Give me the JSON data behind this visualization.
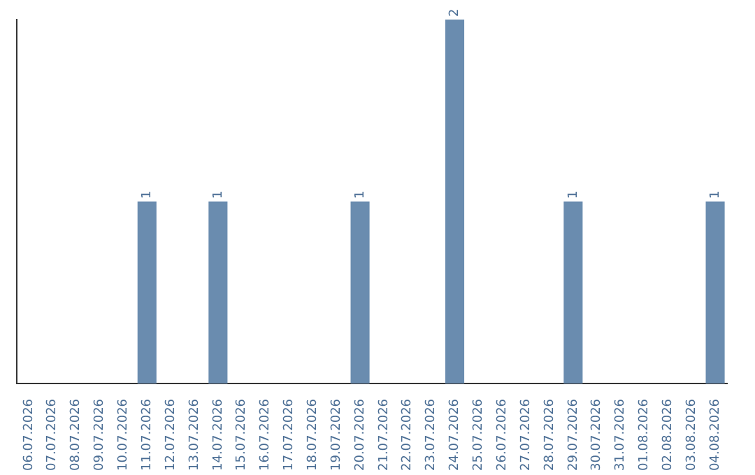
{
  "chart_data": {
    "type": "bar",
    "categories": [
      "06.07.2026",
      "07.07.2026",
      "08.07.2026",
      "09.07.2026",
      "10.07.2026",
      "11.07.2026",
      "12.07.2026",
      "13.07.2026",
      "14.07.2026",
      "15.07.2026",
      "16.07.2026",
      "17.07.2026",
      "18.07.2026",
      "19.07.2026",
      "20.07.2026",
      "21.07.2026",
      "22.07.2026",
      "23.07.2026",
      "24.07.2026",
      "25.07.2026",
      "26.07.2026",
      "27.07.2026",
      "28.07.2026",
      "29.07.2026",
      "30.07.2026",
      "31.07.2026",
      "01.08.2026",
      "02.08.2026",
      "03.08.2026",
      "04.08.2026"
    ],
    "values": [
      0,
      0,
      0,
      0,
      0,
      1,
      0,
      0,
      1,
      0,
      0,
      0,
      0,
      0,
      1,
      0,
      0,
      0,
      2,
      0,
      0,
      0,
      0,
      1,
      0,
      0,
      0,
      0,
      0,
      1
    ],
    "value_labels": [
      null,
      null,
      null,
      null,
      null,
      "1",
      null,
      null,
      "1",
      null,
      null,
      null,
      null,
      null,
      "1",
      null,
      null,
      null,
      "2",
      null,
      null,
      null,
      null,
      "1",
      null,
      null,
      null,
      null,
      null,
      "1"
    ],
    "color": "#6a8caf",
    "grid": false,
    "legend": false
  }
}
